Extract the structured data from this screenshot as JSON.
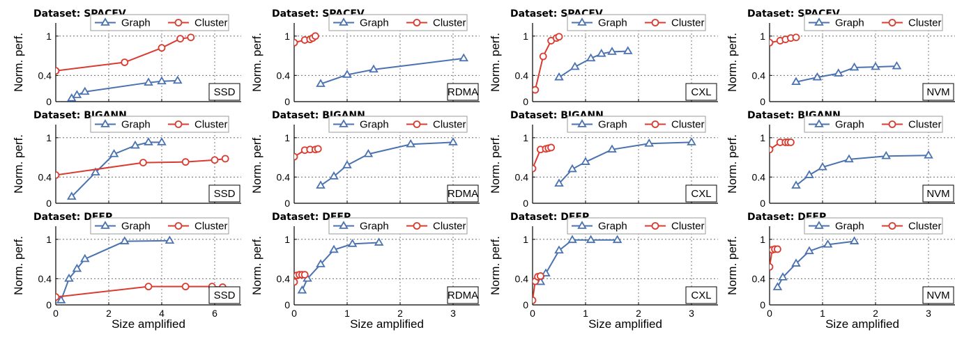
{
  "figure": {
    "ylabel": "Norm. perf.",
    "xlabel": "Size amplified",
    "colors": {
      "graph": "#4a72b0",
      "cluster": "#d93b30"
    }
  },
  "chart_data": [
    {
      "type": "line",
      "title": "Dataset: SPACEV",
      "medium": "SSD",
      "xlim": [
        0,
        7
      ],
      "ylim": [
        0,
        1.2
      ],
      "yticks": [
        0,
        0.4,
        1
      ],
      "xticks": [
        0,
        2,
        4,
        6
      ],
      "series": [
        {
          "name": "Graph",
          "marker": "triangle",
          "x": [
            0.6,
            0.8,
            1.1,
            3.5,
            4.0,
            4.6
          ],
          "y": [
            0.05,
            0.1,
            0.15,
            0.29,
            0.31,
            0.32
          ]
        },
        {
          "name": "Cluster",
          "marker": "circle",
          "x": [
            0,
            2.6,
            4.0,
            4.7,
            5.1
          ],
          "y": [
            0.47,
            0.6,
            0.82,
            0.96,
            0.98
          ]
        }
      ]
    },
    {
      "type": "line",
      "title": "Dataset: SPACEV",
      "medium": "RDMA",
      "xlim": [
        0,
        3.5
      ],
      "ylim": [
        0,
        1.2
      ],
      "yticks": [
        0,
        0.4,
        1
      ],
      "xticks": [
        0,
        1,
        2,
        3
      ],
      "series": [
        {
          "name": "Graph",
          "marker": "triangle",
          "x": [
            0.5,
            1.0,
            1.5,
            3.2
          ],
          "y": [
            0.27,
            0.41,
            0.49,
            0.66
          ]
        },
        {
          "name": "Cluster",
          "marker": "circle",
          "x": [
            0,
            0.2,
            0.3,
            0.35,
            0.4
          ],
          "y": [
            0.9,
            0.94,
            0.95,
            0.97,
            1.0
          ]
        }
      ]
    },
    {
      "type": "line",
      "title": "Dataset: SPACEV",
      "medium": "CXL",
      "xlim": [
        0,
        3.5
      ],
      "ylim": [
        0,
        1.2
      ],
      "yticks": [
        0,
        0.4,
        1
      ],
      "xticks": [
        0,
        1,
        2,
        3
      ],
      "series": [
        {
          "name": "Graph",
          "marker": "triangle",
          "x": [
            0.5,
            0.8,
            1.1,
            1.3,
            1.5,
            1.8
          ],
          "y": [
            0.37,
            0.53,
            0.66,
            0.73,
            0.76,
            0.77
          ]
        },
        {
          "name": "Cluster",
          "marker": "circle",
          "x": [
            0.05,
            0.2,
            0.35,
            0.45,
            0.5
          ],
          "y": [
            0.18,
            0.69,
            0.93,
            0.97,
            0.99
          ]
        }
      ]
    },
    {
      "type": "line",
      "title": "Dataset: SPACEV",
      "medium": "NVM",
      "xlim": [
        0,
        3.5
      ],
      "ylim": [
        0,
        1.2
      ],
      "yticks": [
        0,
        0.4,
        1
      ],
      "xticks": [
        0,
        1,
        2,
        3
      ],
      "series": [
        {
          "name": "Graph",
          "marker": "triangle",
          "x": [
            0.5,
            0.9,
            1.3,
            1.6,
            2.0,
            2.4
          ],
          "y": [
            0.3,
            0.37,
            0.43,
            0.52,
            0.53,
            0.54
          ]
        },
        {
          "name": "Cluster",
          "marker": "circle",
          "x": [
            0,
            0.2,
            0.3,
            0.4,
            0.5
          ],
          "y": [
            0.9,
            0.93,
            0.95,
            0.97,
            0.98
          ]
        }
      ]
    },
    {
      "type": "line",
      "title": "Dataset: BIGANN",
      "medium": "SSD",
      "xlim": [
        0,
        7
      ],
      "ylim": [
        0,
        1.2
      ],
      "yticks": [
        0,
        0.4,
        1
      ],
      "xticks": [
        0,
        2,
        4,
        6
      ],
      "series": [
        {
          "name": "Graph",
          "marker": "triangle",
          "x": [
            0.6,
            1.5,
            2.2,
            3.0,
            3.5,
            4.0
          ],
          "y": [
            0.1,
            0.47,
            0.75,
            0.88,
            0.93,
            0.93
          ]
        },
        {
          "name": "Cluster",
          "marker": "circle",
          "x": [
            0,
            3.3,
            4.9,
            6.0,
            6.4
          ],
          "y": [
            0.43,
            0.62,
            0.63,
            0.66,
            0.68
          ]
        }
      ]
    },
    {
      "type": "line",
      "title": "Dataset: BIGANN",
      "medium": "RDMA",
      "xlim": [
        0,
        3.5
      ],
      "ylim": [
        0,
        1.2
      ],
      "yticks": [
        0,
        0.4,
        1
      ],
      "xticks": [
        0,
        1,
        2,
        3
      ],
      "series": [
        {
          "name": "Graph",
          "marker": "triangle",
          "x": [
            0.5,
            0.75,
            1.0,
            1.4,
            2.2,
            3.0
          ],
          "y": [
            0.27,
            0.41,
            0.58,
            0.75,
            0.9,
            0.93
          ]
        },
        {
          "name": "Cluster",
          "marker": "circle",
          "x": [
            0,
            0.2,
            0.3,
            0.4,
            0.45
          ],
          "y": [
            0.71,
            0.81,
            0.82,
            0.82,
            0.83
          ]
        }
      ]
    },
    {
      "type": "line",
      "title": "Dataset: BIGANN",
      "medium": "CXL",
      "xlim": [
        0,
        3.5
      ],
      "ylim": [
        0,
        1.2
      ],
      "yticks": [
        0,
        0.4,
        1
      ],
      "xticks": [
        0,
        1,
        2,
        3
      ],
      "series": [
        {
          "name": "Graph",
          "marker": "triangle",
          "x": [
            0.5,
            0.75,
            1.0,
            1.5,
            2.2,
            3.0
          ],
          "y": [
            0.3,
            0.52,
            0.63,
            0.82,
            0.91,
            0.93
          ]
        },
        {
          "name": "Cluster",
          "marker": "circle",
          "x": [
            0,
            0.15,
            0.25,
            0.3,
            0.35
          ],
          "y": [
            0.53,
            0.82,
            0.83,
            0.84,
            0.85
          ]
        }
      ]
    },
    {
      "type": "line",
      "title": "Dataset: BIGANN",
      "medium": "NVM",
      "xlim": [
        0,
        3.5
      ],
      "ylim": [
        0,
        1.2
      ],
      "yticks": [
        0,
        0.4,
        1
      ],
      "xticks": [
        0,
        1,
        2,
        3
      ],
      "series": [
        {
          "name": "Graph",
          "marker": "triangle",
          "x": [
            0.5,
            0.75,
            1.0,
            1.5,
            2.2,
            3.0
          ],
          "y": [
            0.27,
            0.43,
            0.55,
            0.67,
            0.72,
            0.73
          ]
        },
        {
          "name": "Cluster",
          "marker": "circle",
          "x": [
            0,
            0.2,
            0.3,
            0.35,
            0.4
          ],
          "y": [
            0.82,
            0.93,
            0.93,
            0.93,
            0.93
          ]
        }
      ]
    },
    {
      "type": "line",
      "title": "Dataset: DEEP",
      "medium": "SSD",
      "xlim": [
        0,
        7
      ],
      "ylim": [
        0,
        1.2
      ],
      "yticks": [
        0,
        0.4,
        1
      ],
      "xticks": [
        0,
        2,
        4,
        6
      ],
      "series": [
        {
          "name": "Graph",
          "marker": "triangle",
          "x": [
            0.2,
            0.5,
            0.8,
            1.1,
            2.6,
            4.3
          ],
          "y": [
            0.07,
            0.4,
            0.55,
            0.7,
            0.97,
            0.98
          ]
        },
        {
          "name": "Cluster",
          "marker": "circle",
          "x": [
            0,
            3.5,
            4.9,
            5.9,
            6.3
          ],
          "y": [
            0.12,
            0.28,
            0.28,
            0.28,
            0.27
          ]
        }
      ]
    },
    {
      "type": "line",
      "title": "Dataset: DEEP",
      "medium": "RDMA",
      "xlim": [
        0,
        3.5
      ],
      "ylim": [
        0,
        1.2
      ],
      "yticks": [
        0,
        0.4,
        1
      ],
      "xticks": [
        0,
        1,
        2,
        3
      ],
      "series": [
        {
          "name": "Graph",
          "marker": "triangle",
          "x": [
            0.15,
            0.25,
            0.5,
            0.75,
            1.1,
            1.6
          ],
          "y": [
            0.22,
            0.4,
            0.62,
            0.84,
            0.93,
            0.95
          ]
        },
        {
          "name": "Cluster",
          "marker": "circle",
          "x": [
            0,
            0.05,
            0.1,
            0.15,
            0.2
          ],
          "y": [
            0.35,
            0.45,
            0.46,
            0.46,
            0.46
          ]
        }
      ]
    },
    {
      "type": "line",
      "title": "Dataset: DEEP",
      "medium": "CXL",
      "xlim": [
        0,
        3.5
      ],
      "ylim": [
        0,
        1.2
      ],
      "yticks": [
        0,
        0.4,
        1
      ],
      "xticks": [
        0,
        1,
        2,
        3
      ],
      "series": [
        {
          "name": "Graph",
          "marker": "triangle",
          "x": [
            0.15,
            0.25,
            0.5,
            0.75,
            1.1,
            1.6
          ],
          "y": [
            0.35,
            0.48,
            0.83,
            0.99,
            0.99,
            0.99
          ]
        },
        {
          "name": "Cluster",
          "marker": "circle",
          "x": [
            0,
            0.05,
            0.1,
            0.15
          ],
          "y": [
            0.07,
            0.36,
            0.43,
            0.44
          ]
        }
      ]
    },
    {
      "type": "line",
      "title": "Dataset: DEEP",
      "medium": "NVM",
      "xlim": [
        0,
        3.5
      ],
      "ylim": [
        0,
        1.2
      ],
      "yticks": [
        0,
        0.4,
        1
      ],
      "xticks": [
        0,
        1,
        2,
        3
      ],
      "series": [
        {
          "name": "Graph",
          "marker": "triangle",
          "x": [
            0.15,
            0.25,
            0.5,
            0.75,
            1.1,
            1.6
          ],
          "y": [
            0.27,
            0.42,
            0.63,
            0.82,
            0.92,
            0.97
          ]
        },
        {
          "name": "Cluster",
          "marker": "circle",
          "x": [
            0,
            0.05,
            0.1,
            0.15
          ],
          "y": [
            0.58,
            0.84,
            0.85,
            0.85
          ]
        }
      ]
    }
  ]
}
